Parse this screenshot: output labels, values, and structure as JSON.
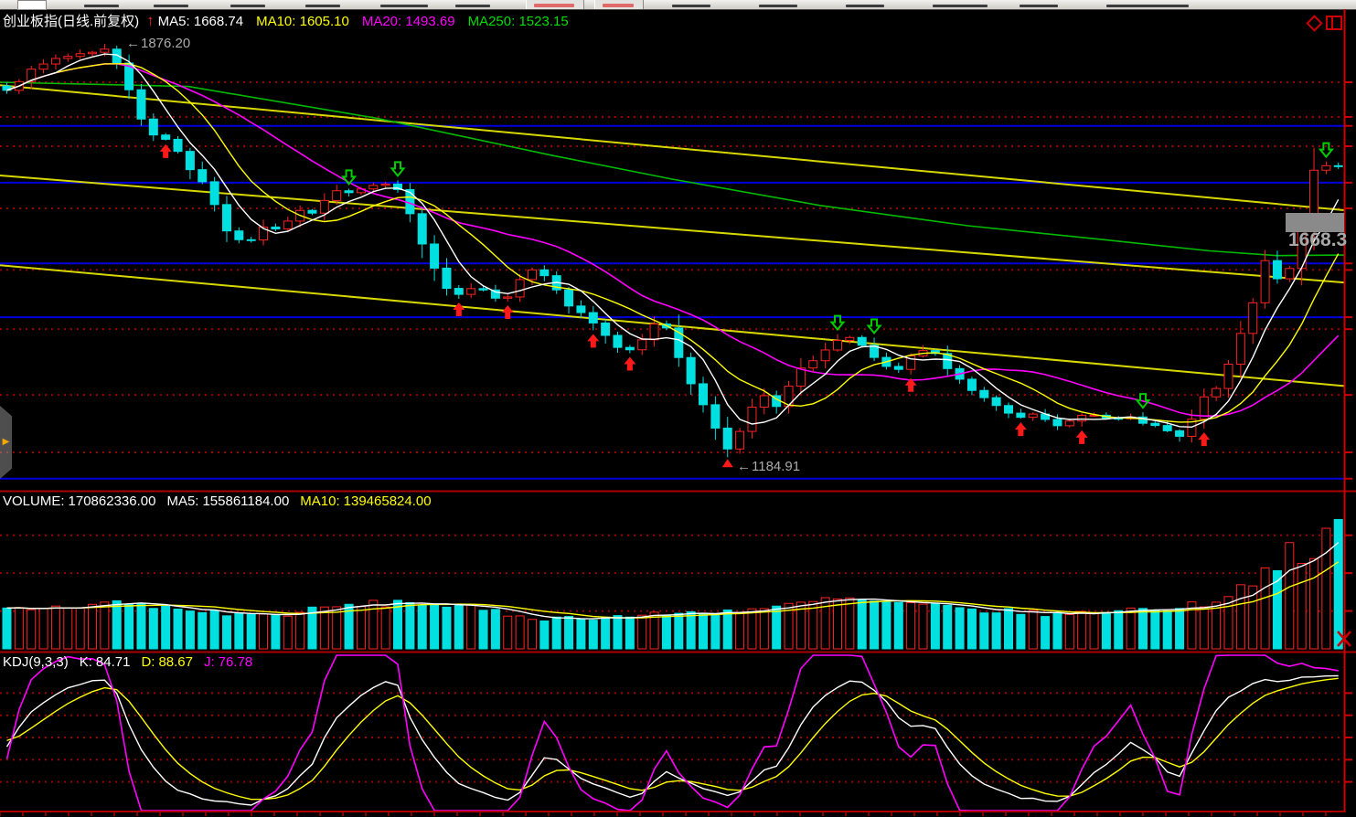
{
  "toolbar": {
    "note": "top toolbar is clipped at screen edge; text illegible",
    "buttons_with_red_text": 2
  },
  "main_chart": {
    "title": "创业板指(日线.前复权)",
    "trend_icon": "up-arrow",
    "ma_labels": [
      {
        "label": "MA5:",
        "value": "1668.74",
        "color": "#ffffff"
      },
      {
        "label": "MA10:",
        "value": "1605.10",
        "color": "#ffff00"
      },
      {
        "label": "MA20:",
        "value": "1493.69",
        "color": "#ff00ff"
      },
      {
        "label": "MA250:",
        "value": "1523.15",
        "color": "#00dd00"
      }
    ],
    "high_annotation": "1876.20",
    "low_annotation": "1184.91",
    "last_price_label": "1668.3",
    "corner_icons": [
      "diamond-icon",
      "split-window-icon"
    ]
  },
  "volume_pane": {
    "label": "VOLUME:",
    "value": "170862336.00",
    "ma5_label": "MA5:",
    "ma5_value": "155861184.00",
    "ma10_label": "MA10:",
    "ma10_value": "139465824.00",
    "close_icon": "x-icon"
  },
  "kdj_pane": {
    "label": "KDJ(9,3,3)",
    "k_label": "K:",
    "k_value": "84.71",
    "d_label": "D:",
    "d_value": "88.67",
    "j_label": "J:",
    "j_value": "76.78"
  },
  "colors": {
    "up": "#ff2222",
    "down": "#00e0e0",
    "ma5": "#ffffff",
    "ma10": "#ffff00",
    "ma20": "#ff00ff",
    "ma250": "#00bb00",
    "blue_level": "#0000dd",
    "dotted_level": "#990000",
    "trendline": "#d8d800",
    "axis": "#cc0000",
    "separator": "#aa0000",
    "annotation": "#aaaaaa",
    "buy_arrow": "#ff1a1a",
    "sell_arrow": "#00cc00",
    "vol_ma5": "#ffffff",
    "vol_ma10": "#ffff00",
    "kdj_k": "#ffffff",
    "kdj_d": "#ffff00",
    "kdj_j": "#ff00ff"
  },
  "chart_data": {
    "type": "candlestick+volume+kdj",
    "instrument": "创业板指",
    "period": "日线",
    "adjustment": "前复权",
    "num_candles": 110,
    "price_axis": {
      "high": 1876.2,
      "low": 1184.91,
      "last_close": 1668.3
    },
    "ma_values": {
      "ma5": 1668.74,
      "ma10": 1605.1,
      "ma20": 1493.69,
      "ma250": 1523.15
    },
    "close_anchors": [
      [
        0.0,
        1802
      ],
      [
        0.018,
        1830
      ],
      [
        0.037,
        1852
      ],
      [
        0.055,
        1860
      ],
      [
        0.073,
        1868
      ],
      [
        0.082,
        1845
      ],
      [
        0.092,
        1800
      ],
      [
        0.1,
        1756
      ],
      [
        0.11,
        1722
      ],
      [
        0.12,
        1716
      ],
      [
        0.128,
        1700
      ],
      [
        0.137,
        1668
      ],
      [
        0.15,
        1640
      ],
      [
        0.158,
        1596
      ],
      [
        0.168,
        1552
      ],
      [
        0.18,
        1540
      ],
      [
        0.19,
        1568
      ],
      [
        0.2,
        1566
      ],
      [
        0.21,
        1580
      ],
      [
        0.22,
        1600
      ],
      [
        0.23,
        1594
      ],
      [
        0.242,
        1622
      ],
      [
        0.252,
        1634
      ],
      [
        0.262,
        1626
      ],
      [
        0.272,
        1638
      ],
      [
        0.283,
        1642
      ],
      [
        0.293,
        1634
      ],
      [
        0.303,
        1588
      ],
      [
        0.313,
        1535
      ],
      [
        0.323,
        1490
      ],
      [
        0.333,
        1456
      ],
      [
        0.343,
        1462
      ],
      [
        0.353,
        1474
      ],
      [
        0.363,
        1456
      ],
      [
        0.373,
        1444
      ],
      [
        0.383,
        1481
      ],
      [
        0.394,
        1497
      ],
      [
        0.404,
        1489
      ],
      [
        0.414,
        1462
      ],
      [
        0.424,
        1432
      ],
      [
        0.435,
        1420
      ],
      [
        0.445,
        1398
      ],
      [
        0.455,
        1375
      ],
      [
        0.465,
        1360
      ],
      [
        0.476,
        1380
      ],
      [
        0.486,
        1410
      ],
      [
        0.496,
        1398
      ],
      [
        0.506,
        1345
      ],
      [
        0.516,
        1299
      ],
      [
        0.526,
        1260
      ],
      [
        0.536,
        1218
      ],
      [
        0.544,
        1192
      ],
      [
        0.551,
        1230
      ],
      [
        0.56,
        1268
      ],
      [
        0.569,
        1288
      ],
      [
        0.578,
        1268
      ],
      [
        0.588,
        1306
      ],
      [
        0.598,
        1337
      ],
      [
        0.608,
        1352
      ],
      [
        0.618,
        1370
      ],
      [
        0.628,
        1386
      ],
      [
        0.638,
        1380
      ],
      [
        0.648,
        1355
      ],
      [
        0.658,
        1340
      ],
      [
        0.668,
        1325
      ],
      [
        0.679,
        1352
      ],
      [
        0.689,
        1364
      ],
      [
        0.699,
        1355
      ],
      [
        0.709,
        1329
      ],
      [
        0.72,
        1306
      ],
      [
        0.73,
        1288
      ],
      [
        0.74,
        1276
      ],
      [
        0.75,
        1260
      ],
      [
        0.76,
        1248
      ],
      [
        0.771,
        1257
      ],
      [
        0.781,
        1245
      ],
      [
        0.791,
        1236
      ],
      [
        0.801,
        1248
      ],
      [
        0.811,
        1257
      ],
      [
        0.821,
        1253
      ],
      [
        0.832,
        1248
      ],
      [
        0.842,
        1257
      ],
      [
        0.852,
        1245
      ],
      [
        0.862,
        1236
      ],
      [
        0.872,
        1227
      ],
      [
        0.882,
        1218
      ],
      [
        0.889,
        1245
      ],
      [
        0.896,
        1290
      ],
      [
        0.903,
        1279
      ],
      [
        0.91,
        1306
      ],
      [
        0.917,
        1337
      ],
      [
        0.924,
        1375
      ],
      [
        0.931,
        1413
      ],
      [
        0.938,
        1459
      ],
      [
        0.944,
        1505
      ],
      [
        0.949,
        1535
      ],
      [
        0.954,
        1483
      ],
      [
        0.959,
        1460
      ],
      [
        0.964,
        1505
      ],
      [
        0.969,
        1543
      ],
      [
        0.974,
        1581
      ],
      [
        0.979,
        1642
      ],
      [
        0.984,
        1681
      ],
      [
        0.988,
        1696
      ],
      [
        0.992,
        1666
      ],
      [
        0.996,
        1628
      ],
      [
        1.0,
        1668
      ]
    ],
    "volume_anchors": [
      [
        0.0,
        52000000
      ],
      [
        0.05,
        56000000
      ],
      [
        0.08,
        62000000
      ],
      [
        0.1,
        58000000
      ],
      [
        0.15,
        48000000
      ],
      [
        0.2,
        44000000
      ],
      [
        0.25,
        56000000
      ],
      [
        0.3,
        62000000
      ],
      [
        0.33,
        58000000
      ],
      [
        0.36,
        50000000
      ],
      [
        0.4,
        40000000
      ],
      [
        0.45,
        42000000
      ],
      [
        0.5,
        46000000
      ],
      [
        0.54,
        50000000
      ],
      [
        0.58,
        55000000
      ],
      [
        0.6,
        60000000
      ],
      [
        0.62,
        66000000
      ],
      [
        0.65,
        62000000
      ],
      [
        0.68,
        58000000
      ],
      [
        0.72,
        52000000
      ],
      [
        0.75,
        49000000
      ],
      [
        0.8,
        45000000
      ],
      [
        0.83,
        52000000
      ],
      [
        0.86,
        52000000
      ],
      [
        0.88,
        55000000
      ],
      [
        0.9,
        60000000
      ],
      [
        0.92,
        74000000
      ],
      [
        0.93,
        85000000
      ],
      [
        0.94,
        96000000
      ],
      [
        0.95,
        110000000
      ],
      [
        0.96,
        118000000
      ],
      [
        0.965,
        135000000
      ],
      [
        0.97,
        125000000
      ],
      [
        0.975,
        100000000
      ],
      [
        0.98,
        95000000
      ],
      [
        0.985,
        140000000
      ],
      [
        0.99,
        155000000
      ],
      [
        0.995,
        162000000
      ],
      [
        1.0,
        170862336
      ]
    ],
    "volume_last": 170862336,
    "volume_ma5": 155861184,
    "volume_ma10": 139465824,
    "volume_gridlines": [
      50000000,
      100000000,
      150000000
    ],
    "volume_scale_max": 175000000,
    "ma250_anchors": [
      [
        0.0,
        1812
      ],
      [
        0.14,
        1805
      ],
      [
        0.28,
        1752
      ],
      [
        0.41,
        1690
      ],
      [
        0.5,
        1650
      ],
      [
        0.61,
        1606
      ],
      [
        0.72,
        1572
      ],
      [
        0.82,
        1549
      ],
      [
        0.9,
        1530
      ],
      [
        0.95,
        1522
      ],
      [
        1.0,
        1523
      ]
    ],
    "blue_levels": [
      1739,
      1644,
      1509,
      1419,
      1149
    ],
    "red_dotted_levels": [
      1812,
      1754,
      1705,
      1601,
      1498,
      1399,
      1289,
      1193
    ],
    "yellow_trendlines": [
      {
        "price_start": 1807,
        "price_end": 1598
      },
      {
        "price_start": 1656,
        "price_end": 1477
      },
      {
        "price_start": 1506,
        "price_end": 1304
      }
    ],
    "buy_signal_indices": [
      13,
      37,
      41,
      48,
      51,
      74,
      83,
      88,
      98
    ],
    "sell_signal_indices": [
      28,
      32,
      68,
      71,
      93,
      108
    ],
    "kdj_params": [
      9,
      3,
      3
    ],
    "kdj_last": {
      "k": 84.71,
      "d": 88.67,
      "j": 76.78
    },
    "kdj_gridlines": [
      20,
      35,
      50,
      65,
      80
    ]
  }
}
